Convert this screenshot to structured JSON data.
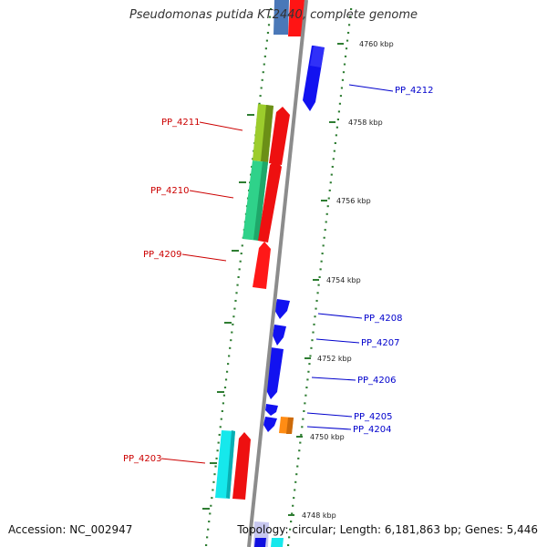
{
  "title": "Pseudomonas putida KT2440, complete genome",
  "footer": {
    "accession": "Accession: NC_002947",
    "summary": "Topology: circular; Length: 6,181,863 bp; Genes: 5,446"
  },
  "colors": {
    "backbone": "#8c8c8c",
    "reverse_label": "#cc0000",
    "forward_label": "#0000cc",
    "tick": "#2e7d32"
  },
  "scale_ticks": [
    {
      "label": "4760 kbp"
    },
    {
      "label": "4758 kbp"
    },
    {
      "label": "4756 kbp"
    },
    {
      "label": "4754 kbp"
    },
    {
      "label": "4752 kbp"
    },
    {
      "label": "4750 kbp"
    },
    {
      "label": "4748 kbp"
    }
  ],
  "gene_labels": [
    {
      "id": "PP_4212",
      "strand": "forward"
    },
    {
      "id": "PP_4211",
      "strand": "reverse"
    },
    {
      "id": "PP_4210",
      "strand": "reverse"
    },
    {
      "id": "PP_4209",
      "strand": "reverse"
    },
    {
      "id": "PP_4208",
      "strand": "forward"
    },
    {
      "id": "PP_4207",
      "strand": "forward"
    },
    {
      "id": "PP_4206",
      "strand": "forward"
    },
    {
      "id": "PP_4205",
      "strand": "forward"
    },
    {
      "id": "PP_4204",
      "strand": "forward"
    },
    {
      "id": "PP_4203",
      "strand": "reverse"
    }
  ]
}
